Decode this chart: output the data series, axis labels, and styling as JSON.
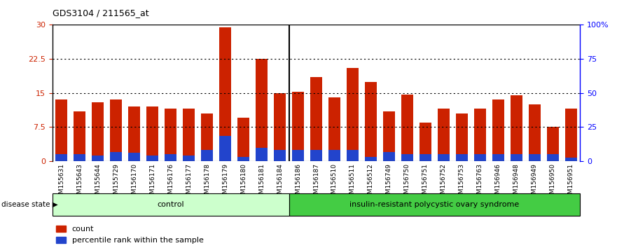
{
  "title": "GDS3104 / 211565_at",
  "samples": [
    "GSM155631",
    "GSM155643",
    "GSM155644",
    "GSM155729",
    "GSM156170",
    "GSM156171",
    "GSM156176",
    "GSM156177",
    "GSM156178",
    "GSM156179",
    "GSM156180",
    "GSM156181",
    "GSM156184",
    "GSM156186",
    "GSM156187",
    "GSM156510",
    "GSM156511",
    "GSM156512",
    "GSM156749",
    "GSM156750",
    "GSM156751",
    "GSM156752",
    "GSM156753",
    "GSM156763",
    "GSM156946",
    "GSM156948",
    "GSM156949",
    "GSM156950",
    "GSM156951"
  ],
  "counts": [
    13.5,
    11.0,
    13.0,
    13.5,
    12.0,
    12.0,
    11.5,
    11.5,
    10.5,
    29.5,
    9.5,
    22.5,
    15.0,
    15.3,
    18.5,
    14.0,
    20.5,
    17.5,
    11.0,
    14.7,
    8.5,
    11.5,
    10.5,
    11.5,
    13.5,
    14.5,
    12.5,
    7.5,
    11.5
  ],
  "percentile_ranks": [
    1.5,
    1.5,
    1.2,
    2.0,
    1.8,
    1.2,
    1.5,
    1.3,
    2.5,
    5.5,
    1.0,
    3.0,
    2.5,
    2.5,
    2.5,
    2.5,
    2.5,
    1.0,
    2.0,
    1.5,
    1.5,
    1.5,
    1.5,
    1.5,
    1.5,
    1.5,
    1.5,
    1.5,
    0.8
  ],
  "group_labels": [
    "control",
    "insulin-resistant polycystic ovary syndrome"
  ],
  "control_count": 13,
  "bar_color_count": "#cc2200",
  "bar_color_percentile": "#2244cc",
  "bg_plot": "#ffffff",
  "bg_control": "#ccffcc",
  "bg_disease": "#44cc44",
  "ylim_left": [
    0,
    30
  ],
  "ylim_right": [
    0,
    100
  ],
  "yticks_left": [
    0,
    7.5,
    15,
    22.5,
    30
  ],
  "yticks_right": [
    0,
    25,
    50,
    75,
    100
  ],
  "ytick_labels_right": [
    "0",
    "25",
    "50",
    "75",
    "100%"
  ],
  "hlines": [
    7.5,
    15.0,
    22.5
  ],
  "legend_count_label": "count",
  "legend_percentile_label": "percentile rank within the sample",
  "disease_state_label": "disease state"
}
